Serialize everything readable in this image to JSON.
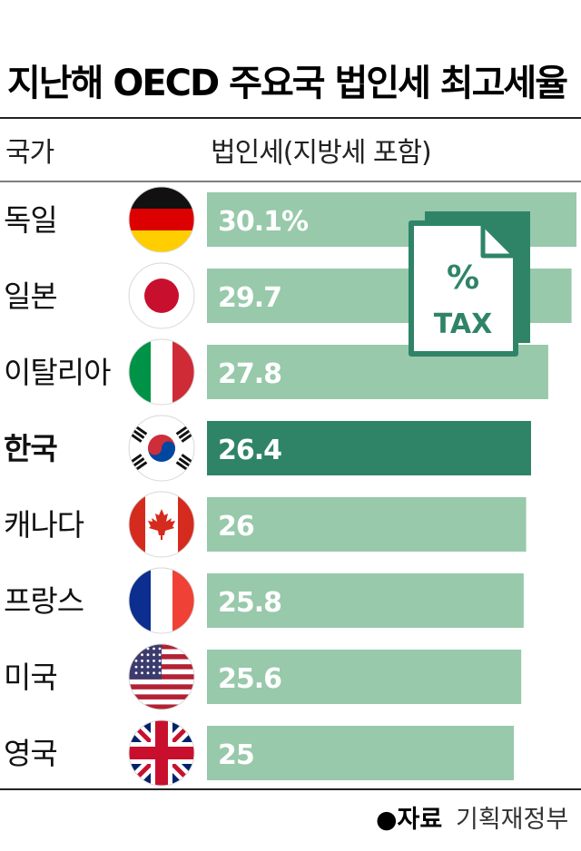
{
  "title": "지난해 OECD 주요국 법인세 최고세율",
  "headers": {
    "country": "국가",
    "rate": "법인세(지방세 포함)"
  },
  "icon": {
    "name": "tax-document-icon",
    "percent": "%",
    "text": "TAX"
  },
  "source": {
    "label": "●자료",
    "value": "기획재정부"
  },
  "colors": {
    "bar": "#97c9aa",
    "highlight": "#2f8467",
    "icon": "#2f8467"
  },
  "chart_data": {
    "type": "bar",
    "orientation": "horizontal",
    "categories": [
      "독일",
      "일본",
      "이탈리아",
      "한국",
      "캐나다",
      "프랑스",
      "미국",
      "영국"
    ],
    "flags": [
      "germany-flag-icon",
      "japan-flag-icon",
      "italy-flag-icon",
      "korea-flag-icon",
      "canada-flag-icon",
      "france-flag-icon",
      "usa-flag-icon",
      "uk-flag-icon"
    ],
    "values": [
      30.1,
      29.7,
      27.8,
      26.4,
      26,
      25.8,
      25.6,
      25
    ],
    "labels": [
      "30.1%",
      "29.7",
      "27.8",
      "26.4",
      "26",
      "25.8",
      "25.6",
      "25"
    ],
    "highlight": "한국"
  }
}
